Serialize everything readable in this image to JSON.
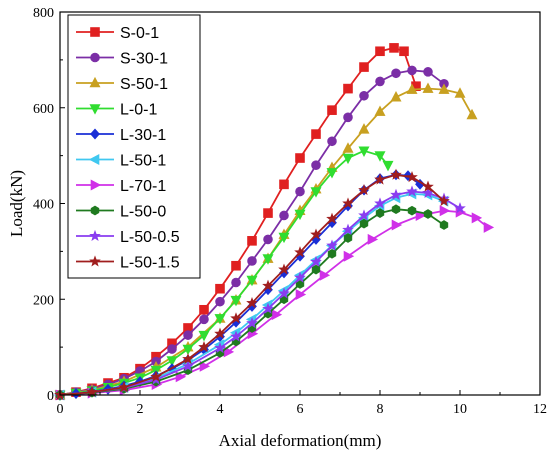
{
  "chart_data": {
    "type": "line",
    "xlabel": "Axial deformation(mm)",
    "ylabel": "Load(kN)",
    "xlim": [
      0,
      12
    ],
    "ylim": [
      0,
      800
    ],
    "xticks": [
      "0",
      "2",
      "4",
      "6",
      "8",
      "10",
      "12"
    ],
    "yticks": [
      "0",
      "200",
      "400",
      "600",
      "800"
    ],
    "grid": false,
    "legend_position": "top-left",
    "series": [
      {
        "name": "S-0-1",
        "color": "#e02020",
        "marker": "square",
        "x": [
          0,
          0.4,
          0.8,
          1.2,
          1.6,
          2.0,
          2.4,
          2.8,
          3.2,
          3.6,
          4.0,
          4.4,
          4.8,
          5.2,
          5.6,
          6.0,
          6.4,
          6.8,
          7.2,
          7.6,
          8.0,
          8.35,
          8.6,
          8.9
        ],
        "y": [
          0,
          6,
          14,
          25,
          36,
          55,
          80,
          108,
          140,
          178,
          222,
          270,
          322,
          380,
          440,
          495,
          545,
          595,
          640,
          685,
          718,
          725,
          718,
          645
        ]
      },
      {
        "name": "S-30-1",
        "color": "#7b2ea6",
        "marker": "circle",
        "x": [
          0,
          0.4,
          0.8,
          1.2,
          1.6,
          2.0,
          2.4,
          2.8,
          3.2,
          3.6,
          4.0,
          4.4,
          4.8,
          5.2,
          5.6,
          6.0,
          6.4,
          6.8,
          7.2,
          7.6,
          8.0,
          8.4,
          8.8,
          9.2,
          9.6
        ],
        "y": [
          0,
          6,
          12,
          22,
          34,
          50,
          70,
          96,
          125,
          158,
          195,
          235,
          280,
          325,
          375,
          425,
          480,
          530,
          580,
          625,
          655,
          672,
          678,
          675,
          650
        ]
      },
      {
        "name": "S-50-1",
        "color": "#c8a020",
        "marker": "triangle-up",
        "x": [
          0,
          0.8,
          1.6,
          2.4,
          3.2,
          4.0,
          4.4,
          4.8,
          5.2,
          5.6,
          6.0,
          6.4,
          6.8,
          7.2,
          7.6,
          8.0,
          8.4,
          8.8,
          9.2,
          9.6,
          10.0,
          10.3
        ],
        "y": [
          0,
          10,
          28,
          58,
          100,
          160,
          198,
          240,
          285,
          335,
          385,
          430,
          475,
          515,
          555,
          592,
          622,
          638,
          640,
          638,
          630,
          585
        ]
      },
      {
        "name": "L-0-1",
        "color": "#30dd30",
        "marker": "triangle-down",
        "x": [
          0,
          0.4,
          0.8,
          1.2,
          1.6,
          2.0,
          2.4,
          2.8,
          3.2,
          3.6,
          4.0,
          4.4,
          4.8,
          5.2,
          5.6,
          6.0,
          6.4,
          6.8,
          7.2,
          7.6,
          8.0,
          8.2
        ],
        "y": [
          0,
          4,
          9,
          16,
          25,
          36,
          52,
          72,
          96,
          125,
          160,
          198,
          240,
          285,
          330,
          378,
          425,
          465,
          495,
          510,
          500,
          480
        ]
      },
      {
        "name": "L-30-1",
        "color": "#1a2fd6",
        "marker": "diamond",
        "x": [
          0,
          0.4,
          0.8,
          1.2,
          1.6,
          2.0,
          2.4,
          2.8,
          3.2,
          3.6,
          4.0,
          4.4,
          4.8,
          5.2,
          5.6,
          6.0,
          6.4,
          6.8,
          7.2,
          7.6,
          8.0,
          8.4,
          8.7,
          9.0
        ],
        "y": [
          0,
          3,
          7,
          12,
          19,
          28,
          40,
          55,
          73,
          95,
          122,
          152,
          185,
          220,
          255,
          290,
          325,
          360,
          395,
          428,
          452,
          460,
          458,
          440
        ]
      },
      {
        "name": "L-50-1",
        "color": "#40c8f0",
        "marker": "triangle-left",
        "x": [
          0,
          0.8,
          1.6,
          2.4,
          3.2,
          4.0,
          4.4,
          4.8,
          5.2,
          5.6,
          6.0,
          6.4,
          6.8,
          7.2,
          7.6,
          8.0,
          8.4,
          8.8,
          9.2,
          9.6
        ],
        "y": [
          0,
          6,
          16,
          35,
          65,
          105,
          130,
          158,
          188,
          218,
          250,
          282,
          312,
          342,
          370,
          395,
          412,
          420,
          418,
          405
        ]
      },
      {
        "name": "L-70-1",
        "color": "#d030e8",
        "marker": "triangle-right",
        "x": [
          0,
          0.8,
          1.6,
          2.4,
          3.0,
          3.6,
          4.2,
          4.8,
          5.4,
          6.0,
          6.6,
          7.2,
          7.8,
          8.4,
          9.0,
          9.6,
          10.0,
          10.4,
          10.7
        ],
        "y": [
          0,
          4,
          10,
          22,
          38,
          60,
          90,
          128,
          168,
          210,
          250,
          290,
          325,
          355,
          375,
          385,
          382,
          370,
          350
        ]
      },
      {
        "name": "L-50-0",
        "color": "#1f7a1f",
        "marker": "hexagon",
        "x": [
          0,
          0.8,
          1.6,
          2.4,
          3.2,
          4.0,
          4.4,
          4.8,
          5.2,
          5.6,
          6.0,
          6.4,
          6.8,
          7.2,
          7.6,
          8.0,
          8.4,
          8.8,
          9.2,
          9.6
        ],
        "y": [
          0,
          5,
          13,
          28,
          52,
          88,
          112,
          140,
          170,
          200,
          232,
          262,
          295,
          328,
          358,
          380,
          388,
          385,
          378,
          355
        ]
      },
      {
        "name": "L-50-0.5",
        "color": "#8a3cf0",
        "marker": "star",
        "x": [
          0,
          0.8,
          1.6,
          2.4,
          3.2,
          4.0,
          4.4,
          4.8,
          5.2,
          5.6,
          6.0,
          6.4,
          6.8,
          7.2,
          7.6,
          8.0,
          8.4,
          8.8,
          9.2,
          9.6,
          10.0
        ],
        "y": [
          0,
          6,
          15,
          32,
          60,
          98,
          122,
          150,
          180,
          212,
          245,
          278,
          312,
          345,
          375,
          400,
          418,
          425,
          422,
          410,
          390
        ]
      },
      {
        "name": "L-50-1.5",
        "color": "#a01e1e",
        "marker": "star",
        "x": [
          0,
          0.8,
          1.6,
          2.4,
          3.2,
          3.6,
          4.0,
          4.4,
          4.8,
          5.2,
          5.6,
          6.0,
          6.4,
          6.8,
          7.2,
          7.6,
          8.0,
          8.4,
          8.8,
          9.2,
          9.6
        ],
        "y": [
          0,
          6,
          16,
          38,
          75,
          100,
          128,
          160,
          192,
          228,
          262,
          298,
          335,
          368,
          400,
          428,
          450,
          460,
          455,
          435,
          405
        ]
      }
    ]
  }
}
